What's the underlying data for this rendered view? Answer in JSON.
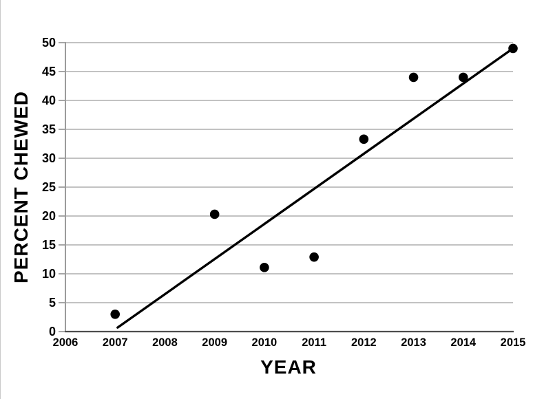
{
  "page": {
    "background_color": "#ffffff"
  },
  "chart_data": {
    "type": "scatter",
    "title": "",
    "xlabel": "YEAR",
    "ylabel": "PERCENT CHEWED",
    "xlim": [
      2006,
      2015
    ],
    "ylim": [
      0,
      50
    ],
    "x_ticks": [
      2006,
      2007,
      2008,
      2009,
      2010,
      2011,
      2012,
      2013,
      2014,
      2015
    ],
    "y_ticks": [
      0,
      5,
      10,
      15,
      20,
      25,
      30,
      35,
      40,
      45,
      50
    ],
    "grid": "horizontal-only",
    "legend": "none",
    "series": [
      {
        "name": "percent-chewed-points",
        "type": "scatter",
        "marker": {
          "shape": "circle",
          "color": "#000000",
          "radius": 6.8
        },
        "points": [
          {
            "x": 2007,
            "y": 3.0
          },
          {
            "x": 2009,
            "y": 20.3
          },
          {
            "x": 2010,
            "y": 11.1
          },
          {
            "x": 2011,
            "y": 12.9
          },
          {
            "x": 2012,
            "y": 33.3
          },
          {
            "x": 2013,
            "y": 44.0
          },
          {
            "x": 2014,
            "y": 44.0
          },
          {
            "x": 2015,
            "y": 49.0
          }
        ]
      },
      {
        "name": "trend-line",
        "type": "line",
        "color": "#000000",
        "width": 3.4,
        "points": [
          {
            "x": 2007.05,
            "y": 0.7
          },
          {
            "x": 2015.0,
            "y": 49.0
          }
        ]
      }
    ],
    "colors": {
      "gridline": "#adadad",
      "y_axis": "#9c9c9c",
      "x_axis": "#4d4d4d",
      "text": "#000000",
      "background": "#ffffff"
    }
  }
}
